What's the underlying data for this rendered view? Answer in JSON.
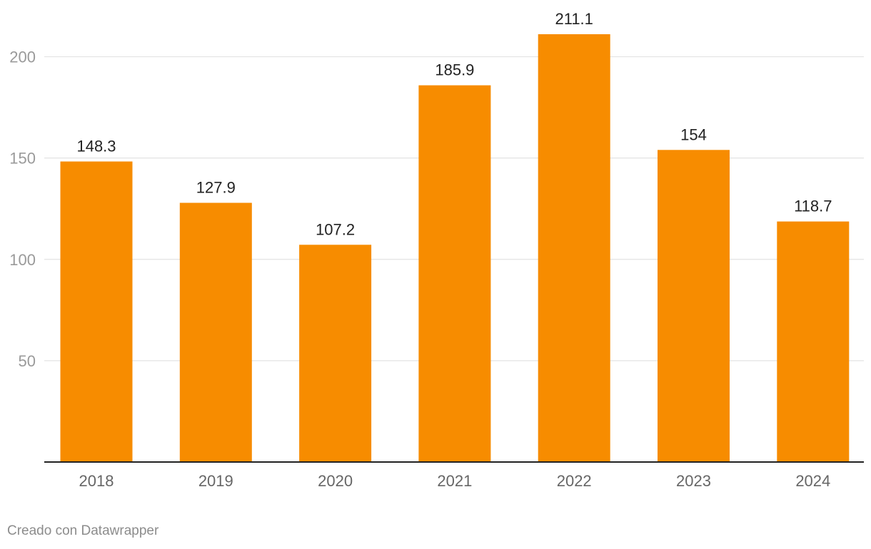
{
  "chart_data": {
    "type": "bar",
    "categories": [
      "2018",
      "2019",
      "2020",
      "2021",
      "2022",
      "2023",
      "2024"
    ],
    "values": [
      148.3,
      127.9,
      107.2,
      185.9,
      211.1,
      154,
      118.7
    ],
    "value_labels": [
      "148.3",
      "127.9",
      "107.2",
      "185.9",
      "211.1",
      "154",
      "118.7"
    ],
    "y_ticks": [
      50,
      100,
      150,
      200
    ],
    "ylim": [
      0,
      211.1
    ],
    "grid": true,
    "legend": "none",
    "colors": {
      "bar": "#f78c00",
      "gridline": "#e3e3e3",
      "baseline": "#222222",
      "tick_label": "#9a9a9a",
      "category_label": "#666666",
      "value_label": "#222222"
    }
  },
  "footer": {
    "credit": "Creado con Datawrapper"
  }
}
